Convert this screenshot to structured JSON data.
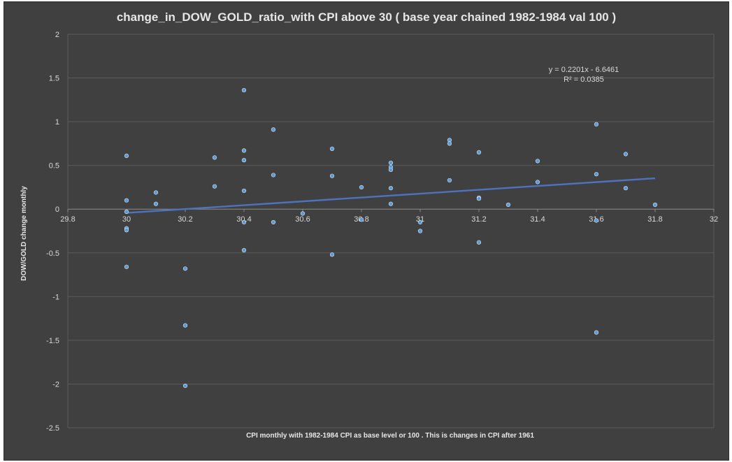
{
  "chart_data": {
    "type": "scatter",
    "title": "change_in_DOW_GOLD_ratio_with CPI above 30 ( base year chained 1982-1984 val 100 )",
    "xlabel": "CPI monthly with 1982-1984 CPI as base level or 100 . This is changes in CPI after 1961",
    "ylabel": "DOW/GOLD change monthly",
    "xlim": [
      29.8,
      32
    ],
    "ylim": [
      -2.5,
      2
    ],
    "x_ticks": [
      29.8,
      30,
      30.2,
      30.4,
      30.6,
      30.8,
      31,
      31.2,
      31.4,
      31.6,
      31.8,
      32
    ],
    "x_tick_labels": [
      "29.8",
      "30",
      "30.2",
      "30.4",
      "30.6",
      "30.8",
      "31",
      "31.2",
      "31.4",
      "31.6",
      "31.8",
      "32"
    ],
    "y_ticks": [
      -2.5,
      -2,
      -1.5,
      -1,
      -0.5,
      0,
      0.5,
      1,
      1.5,
      2
    ],
    "y_tick_labels": [
      "-2.5",
      "-2",
      "-1.5",
      "-1",
      "-0.5",
      "0",
      "0.5",
      "1",
      "1.5",
      "2"
    ],
    "grid": true,
    "marker_color": "#5b9bd5",
    "trendline_color": "#4f72be",
    "points": [
      {
        "x": 30,
        "y": 0.61
      },
      {
        "x": 30,
        "y": 0.1
      },
      {
        "x": 30,
        "y": -0.03
      },
      {
        "x": 30,
        "y": -0.22
      },
      {
        "x": 30,
        "y": -0.24
      },
      {
        "x": 30,
        "y": -0.66
      },
      {
        "x": 30.1,
        "y": 0.19
      },
      {
        "x": 30.1,
        "y": 0.06
      },
      {
        "x": 30.2,
        "y": -0.68
      },
      {
        "x": 30.2,
        "y": -1.33
      },
      {
        "x": 30.2,
        "y": -2.02
      },
      {
        "x": 30.3,
        "y": 0.59
      },
      {
        "x": 30.3,
        "y": 0.26
      },
      {
        "x": 30.4,
        "y": 1.36
      },
      {
        "x": 30.4,
        "y": 0.67
      },
      {
        "x": 30.4,
        "y": 0.56
      },
      {
        "x": 30.4,
        "y": 0.21
      },
      {
        "x": 30.4,
        "y": -0.15
      },
      {
        "x": 30.4,
        "y": -0.47
      },
      {
        "x": 30.5,
        "y": 0.91
      },
      {
        "x": 30.5,
        "y": 0.39
      },
      {
        "x": 30.5,
        "y": -0.15
      },
      {
        "x": 30.6,
        "y": -0.05
      },
      {
        "x": 30.7,
        "y": 0.69
      },
      {
        "x": 30.7,
        "y": 0.38
      },
      {
        "x": 30.7,
        "y": -0.52
      },
      {
        "x": 30.8,
        "y": 0.25
      },
      {
        "x": 30.8,
        "y": -0.12
      },
      {
        "x": 30.9,
        "y": 0.53
      },
      {
        "x": 30.9,
        "y": 0.48
      },
      {
        "x": 30.9,
        "y": 0.45
      },
      {
        "x": 30.9,
        "y": 0.24
      },
      {
        "x": 30.9,
        "y": 0.06
      },
      {
        "x": 31,
        "y": -0.15
      },
      {
        "x": 31,
        "y": -0.25
      },
      {
        "x": 31.1,
        "y": 0.79
      },
      {
        "x": 31.1,
        "y": 0.75
      },
      {
        "x": 31.1,
        "y": 0.33
      },
      {
        "x": 31.2,
        "y": 0.65
      },
      {
        "x": 31.2,
        "y": 0.13
      },
      {
        "x": 31.2,
        "y": 0.12
      },
      {
        "x": 31.2,
        "y": -0.38
      },
      {
        "x": 31.3,
        "y": 0.05
      },
      {
        "x": 31.4,
        "y": 0.55
      },
      {
        "x": 31.4,
        "y": 0.31
      },
      {
        "x": 31.6,
        "y": 0.97
      },
      {
        "x": 31.6,
        "y": 0.4
      },
      {
        "x": 31.6,
        "y": -0.13
      },
      {
        "x": 31.6,
        "y": -1.41
      },
      {
        "x": 31.7,
        "y": 0.63
      },
      {
        "x": 31.7,
        "y": 0.24
      },
      {
        "x": 31.8,
        "y": 0.05
      }
    ],
    "trendline": {
      "type": "linear",
      "slope": 0.2201,
      "intercept": -6.6461,
      "x_range": [
        30,
        31.8
      ],
      "equation": "y = 0.2201x - 6.6461",
      "r_squared": "R² = 0.0385"
    }
  }
}
